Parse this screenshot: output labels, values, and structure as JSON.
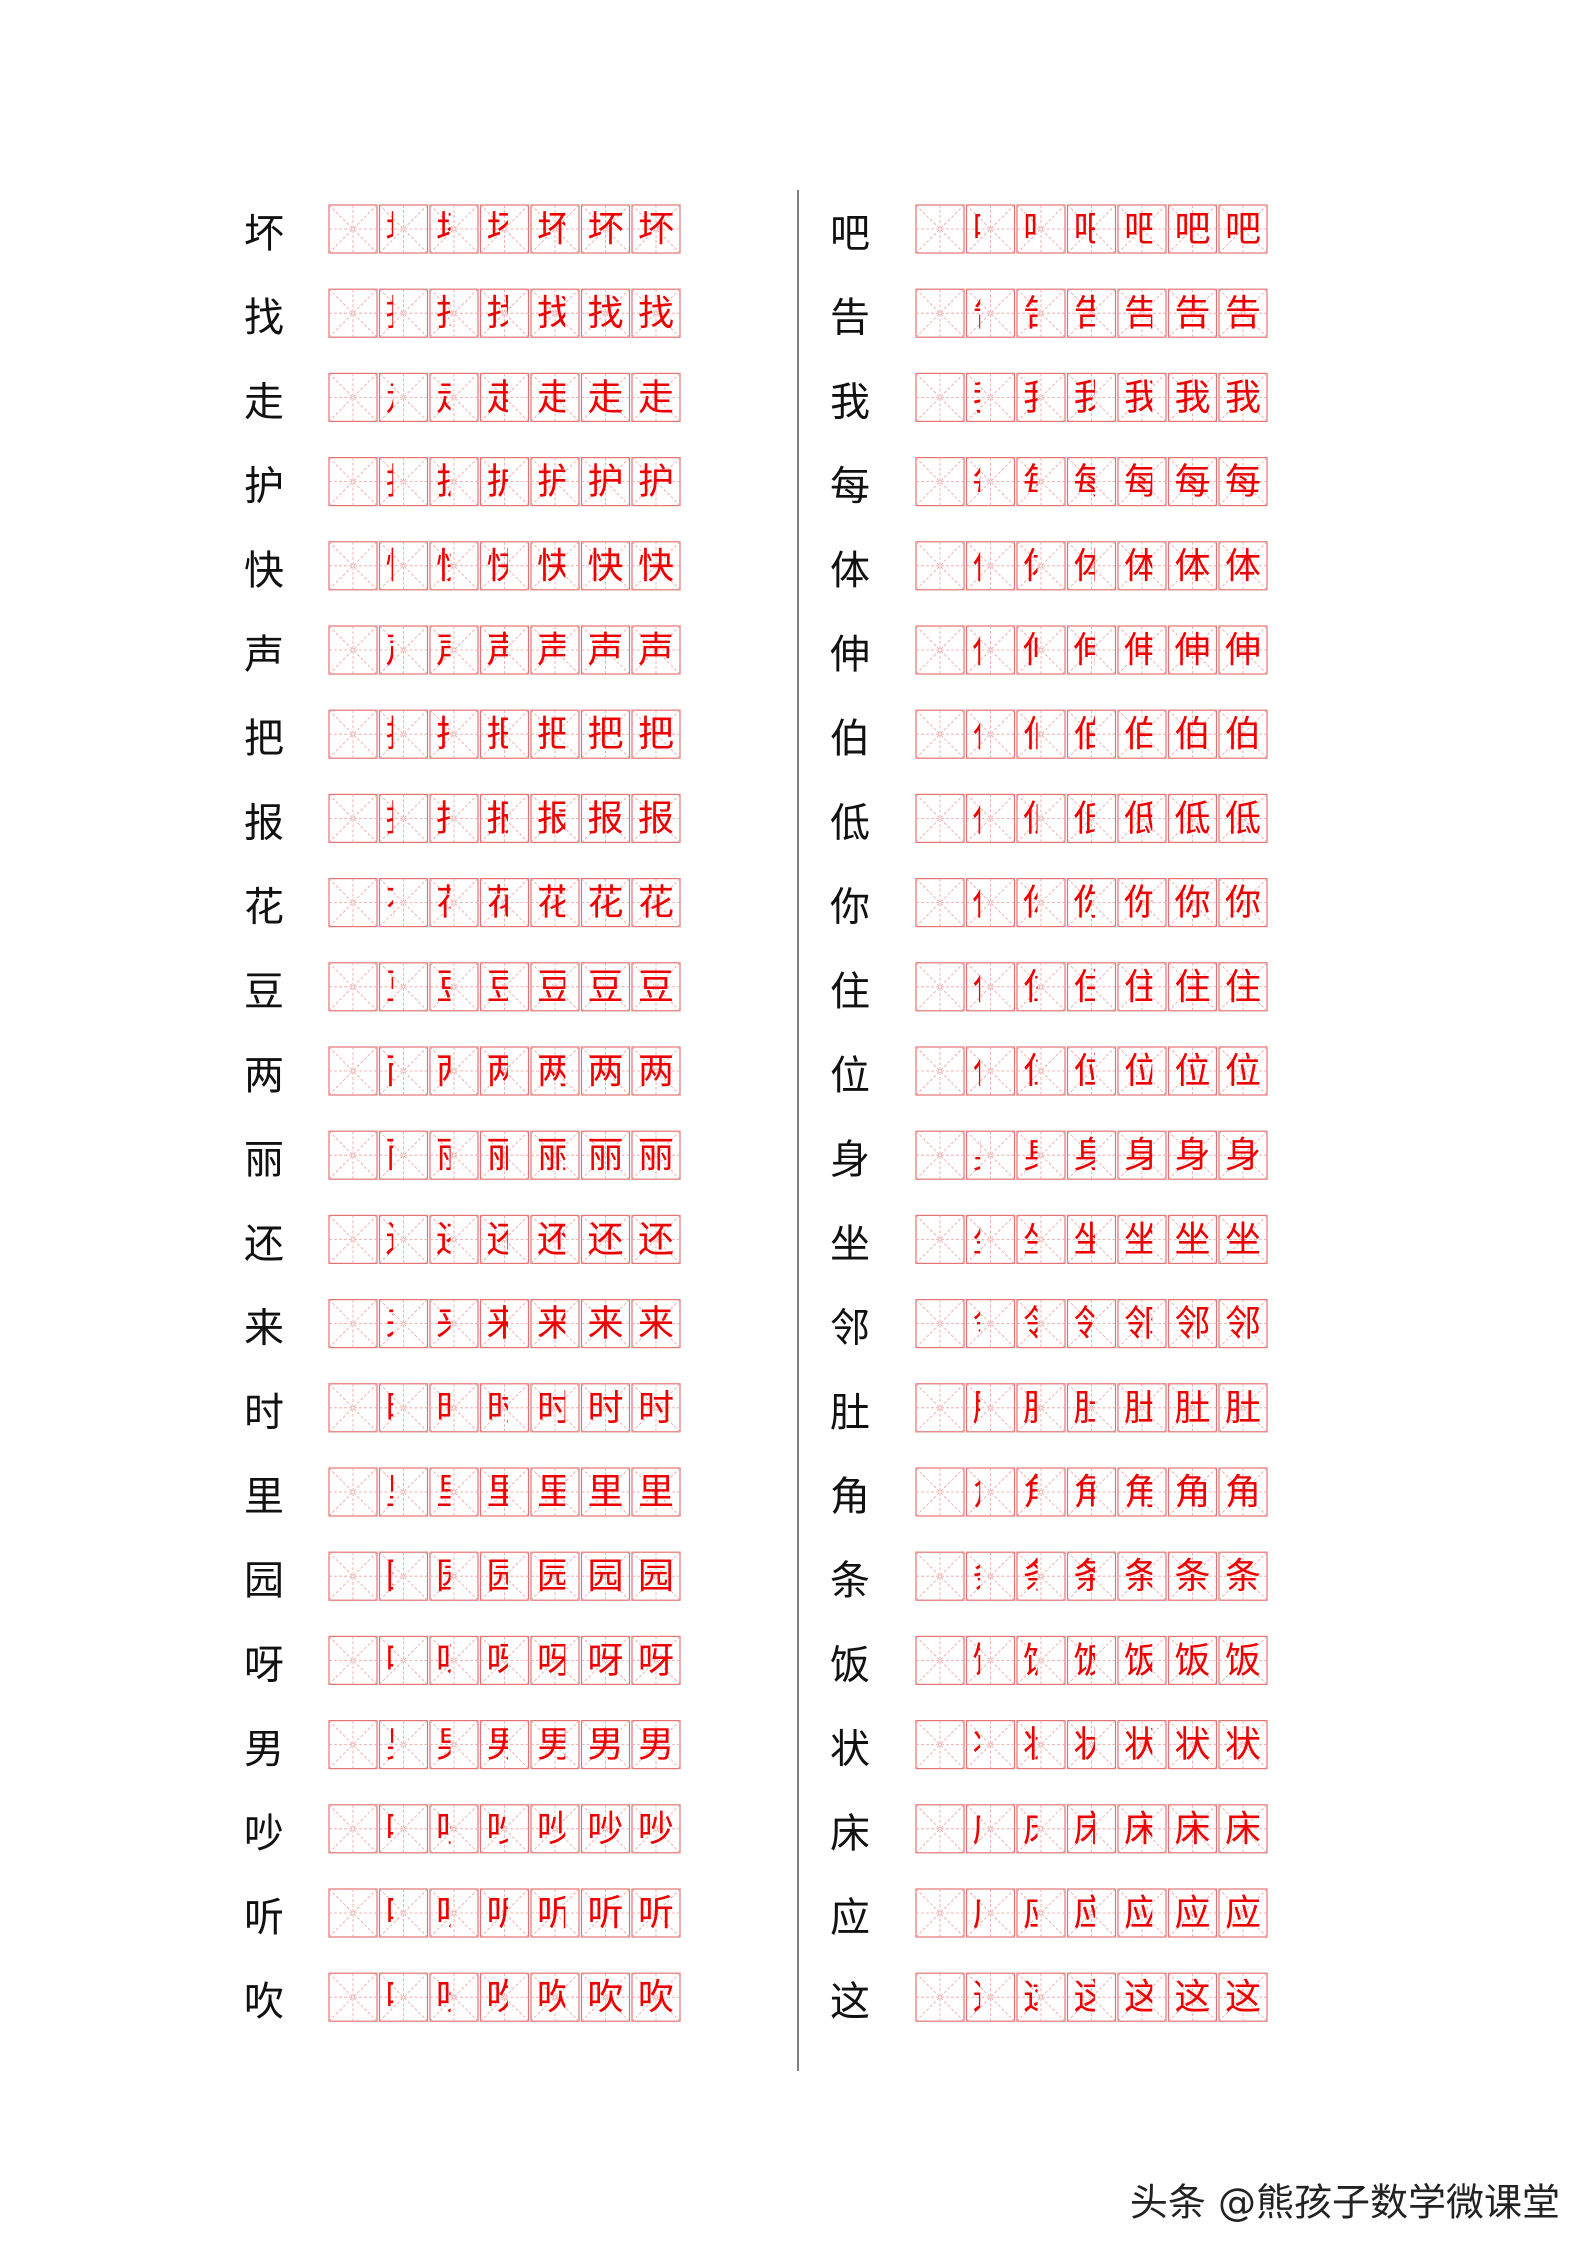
{
  "left_column": {
    "characters": [
      "坏",
      "找",
      "走",
      "护",
      "快",
      "声",
      "把",
      "报",
      "花",
      "豆",
      "两",
      "丽",
      "还",
      "来",
      "时",
      "里",
      "园",
      "呀",
      "男",
      "吵",
      "听",
      "吹"
    ]
  },
  "right_column": {
    "characters": [
      "吧",
      "告",
      "我",
      "每",
      "体",
      "伸",
      "伯",
      "低",
      "你",
      "住",
      "位",
      "身",
      "坐",
      "邻",
      "肚",
      "角",
      "条",
      "饭",
      "状",
      "床",
      "应",
      "这"
    ]
  },
  "watermark": "头条 @熊孩子数学微课堂"
}
